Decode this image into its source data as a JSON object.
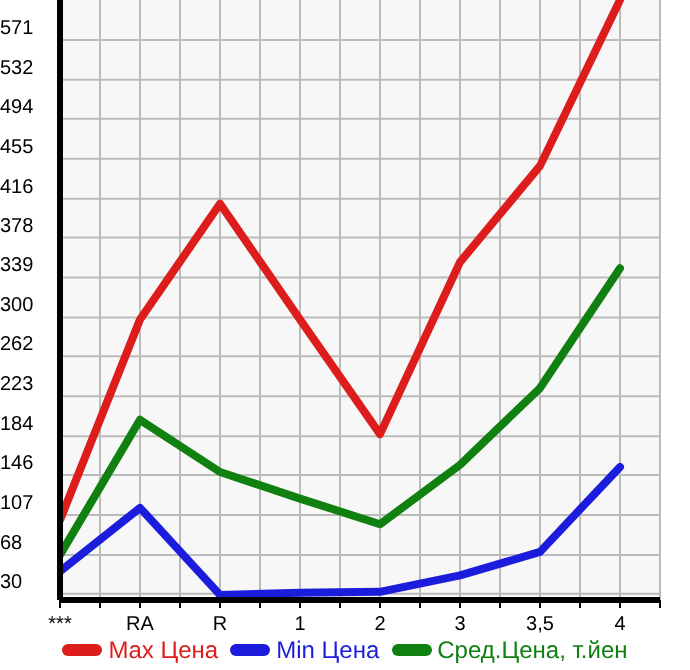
{
  "chart_data": {
    "type": "line",
    "categories": [
      "***",
      "RA",
      "R",
      "1",
      "2",
      "3",
      "3,5",
      "4"
    ],
    "ylim": [
      24,
      610
    ],
    "yticks": [
      30,
      68,
      107,
      146,
      184,
      223,
      262,
      300,
      339,
      378,
      416,
      455,
      494,
      532,
      571
    ],
    "grid": true,
    "legend": "bottom",
    "marker": "none",
    "line_style": "solid",
    "series": [
      {
        "name": "Max Цена",
        "color": "#dd1c1c",
        "values": [
          102,
          298,
          411,
          298,
          186,
          354,
          448,
          610
        ]
      },
      {
        "name": "Min Цена",
        "color": "#1c1cdd",
        "values": [
          52,
          114,
          29,
          31,
          32,
          48,
          71,
          154
        ]
      },
      {
        "name": "Сред.Цена, т.йен",
        "color": "#108010",
        "values": [
          68,
          200,
          149,
          123,
          98,
          156,
          231,
          348
        ]
      }
    ]
  }
}
